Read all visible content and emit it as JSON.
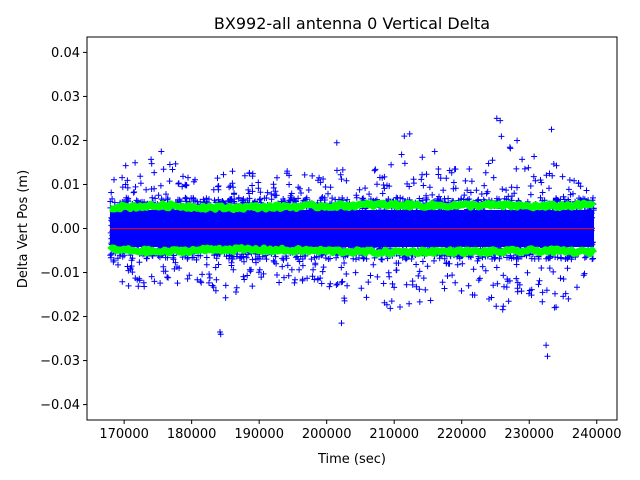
{
  "chart_data": {
    "type": "scatter",
    "title": "BX992-all antenna 0 Vertical Delta",
    "xlabel": "Time (sec)",
    "ylabel": "Delta Vert Pos (m)",
    "xlim": [
      164500,
      243000
    ],
    "ylim": [
      -0.0435,
      0.0435
    ],
    "x_ticks": [
      170000,
      180000,
      190000,
      200000,
      210000,
      220000,
      230000,
      240000
    ],
    "y_ticks": [
      -0.04,
      -0.03,
      -0.02,
      -0.01,
      0.0,
      0.01,
      0.02,
      0.03,
      0.04
    ],
    "x_tick_labels": [
      "170000",
      "180000",
      "190000",
      "200000",
      "210000",
      "220000",
      "230000",
      "240000"
    ],
    "y_tick_labels": [
      "−0.04",
      "−0.03",
      "−0.02",
      "−0.01",
      "0.00",
      "0.01",
      "0.02",
      "0.03",
      "0.04"
    ],
    "x_range_data": [
      167900,
      239600
    ],
    "series": [
      {
        "marker": "+",
        "color": "#0000ff",
        "envelope": {
          "x": [
            168000,
            172000,
            176000,
            180000,
            184000,
            188000,
            192000,
            196000,
            200000,
            202000,
            204000,
            208000,
            212000,
            216000,
            220000,
            224000,
            226000,
            228000,
            232000,
            236000,
            239500
          ],
          "upper": [
            0.0155,
            0.016,
            0.016,
            0.0135,
            0.013,
            0.013,
            0.0125,
            0.0135,
            0.012,
            0.015,
            0.012,
            0.014,
            0.018,
            0.0155,
            0.013,
            0.015,
            0.022,
            0.016,
            0.018,
            0.013,
            0.0075
          ],
          "lower": [
            -0.0125,
            -0.0135,
            -0.0135,
            -0.014,
            -0.018,
            -0.0135,
            -0.0125,
            -0.0125,
            -0.013,
            -0.019,
            -0.014,
            -0.018,
            -0.019,
            -0.0175,
            -0.0165,
            -0.016,
            -0.023,
            -0.016,
            -0.019,
            -0.017,
            -0.0075
          ]
        },
        "outliers": {
          "x": [
            175500,
            184200,
            184300,
            201500,
            202200,
            211500,
            212300,
            216000,
            225200,
            225700,
            228200,
            232500,
            232700,
            233300
          ],
          "y": [
            0.0175,
            -0.0235,
            -0.024,
            0.0195,
            -0.0215,
            0.021,
            0.0215,
            0.0175,
            0.025,
            0.0245,
            0.02,
            -0.0265,
            -0.029,
            0.0225
          ]
        }
      },
      {
        "marker": "line",
        "color": "#00ff00",
        "x": [
          168000,
          176000,
          184000,
          192000,
          200000,
          208000,
          216000,
          224000,
          232000,
          239500
        ],
        "upper": [
          0.0048,
          0.0052,
          0.0047,
          0.0049,
          0.0051,
          0.0054,
          0.0052,
          0.0053,
          0.005,
          0.0054
        ],
        "lower": [
          -0.0048,
          -0.0053,
          -0.0047,
          -0.0049,
          -0.0051,
          -0.0054,
          -0.0052,
          -0.0053,
          -0.005,
          -0.0054
        ]
      },
      {
        "marker": "line",
        "color": "#ff0000",
        "x": [
          167900,
          239600
        ],
        "y": [
          0.0,
          0.0
        ]
      }
    ],
    "grid": false,
    "legend": "none"
  }
}
